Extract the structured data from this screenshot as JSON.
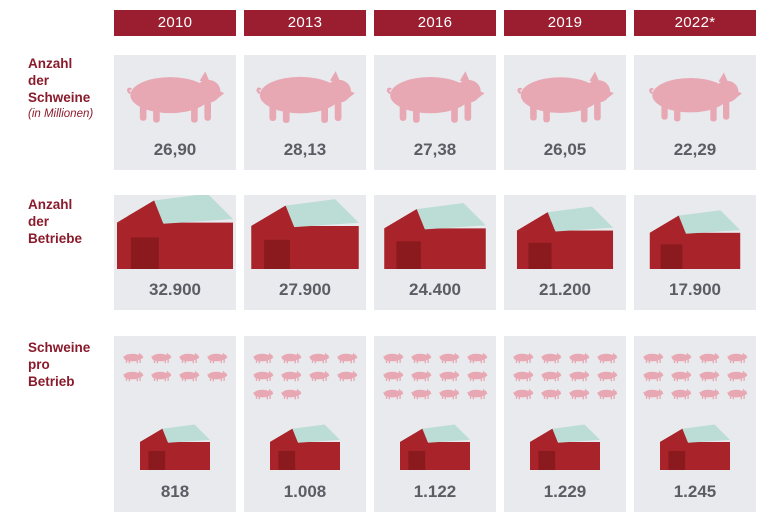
{
  "chart_data": {
    "type": "table",
    "years": [
      "2010",
      "2013",
      "2016",
      "2019",
      "2022*"
    ],
    "rows": [
      {
        "label_lines": [
          "Anzahl",
          "der",
          "Schweine"
        ],
        "sublabel": "(in Millionen)",
        "display_values": [
          "26,90",
          "28,13",
          "27,38",
          "26,05",
          "22,29"
        ],
        "values": [
          26.9,
          28.13,
          27.38,
          26.05,
          22.29
        ]
      },
      {
        "label_lines": [
          "Anzahl",
          "der",
          "Betriebe"
        ],
        "sublabel": "",
        "display_values": [
          "32.900",
          "27.900",
          "24.400",
          "21.200",
          "17.900"
        ],
        "values": [
          32900,
          27900,
          24400,
          21200,
          17900
        ]
      },
      {
        "label_lines": [
          "Schweine",
          "pro",
          "Betrieb"
        ],
        "sublabel": "",
        "display_values": [
          "818",
          "1.008",
          "1.122",
          "1.229",
          "1.245"
        ],
        "values": [
          818,
          1008,
          1122,
          1229,
          1245
        ],
        "pig_icons_per_year": [
          8,
          10,
          12,
          12,
          12
        ]
      }
    ]
  },
  "colors": {
    "header": "#9b1e30",
    "label": "#8a1b2c",
    "cell_bg": "#e9eaee",
    "value_text": "#5a5d63",
    "pig": "#e7a8b4",
    "barn_wall": "#a8242a",
    "barn_roof": "#bcdcd6",
    "barn_door": "#8a1a1e"
  },
  "icons": {
    "animal": "pig-icon",
    "farm": "barn-icon"
  }
}
